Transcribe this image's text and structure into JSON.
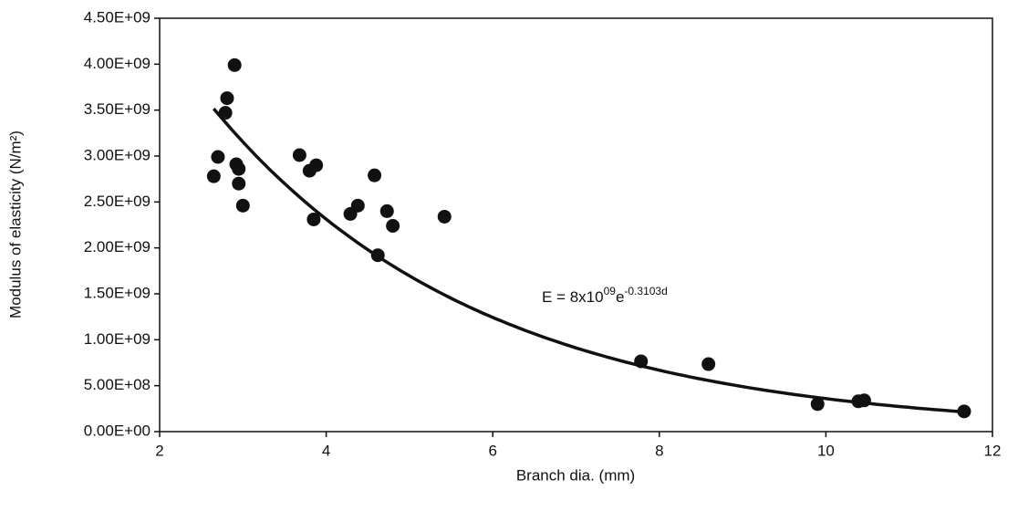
{
  "chart_data": {
    "type": "scatter",
    "x_label": "Branch dia. (mm)",
    "y_label": "Modulus of elasticity (N/m²)",
    "annotation": [
      {
        "text": "E = 8x10"
      },
      {
        "text": "09",
        "sup": true
      },
      {
        "text": "e"
      },
      {
        "text": "-0.3103d",
        "sup": true
      }
    ],
    "fit": {
      "type": "exponential",
      "coefficient": 8000000000,
      "rate": -0.3103,
      "xrange": [
        2.65,
        11.66
      ],
      "color": "#111111"
    },
    "color": "#111111",
    "x": [
      2.65,
      2.7,
      2.81,
      2.79,
      2.9,
      2.92,
      2.95,
      2.95,
      3.0,
      3.68,
      3.8,
      3.88,
      3.85,
      4.29,
      4.38,
      4.58,
      4.73,
      4.8,
      4.62,
      5.42,
      7.78,
      8.59,
      9.9,
      10.39,
      10.46,
      11.66
    ],
    "values": [
      2780000000,
      2990000000,
      3630000000,
      3470000000,
      3990000000,
      2910000000,
      2860000000,
      2700000000,
      2460000000,
      3010000000,
      2840000000,
      2900000000,
      2310000000,
      2370000000,
      2460000000,
      2790000000,
      2400000000,
      2240000000,
      1920000000,
      2340000000,
      765000000,
      735000000,
      300000000,
      330000000,
      340000000,
      220000000
    ],
    "xlim": [
      2,
      12
    ],
    "xticks": [
      2,
      4,
      6,
      8,
      10,
      12
    ],
    "ylim": [
      0,
      4500000000
    ],
    "yticks": [
      {
        "value": 0,
        "label": "0.00E+00"
      },
      {
        "value": 500000000,
        "label": "5.00E+08"
      },
      {
        "value": 1000000000,
        "label": "1.00E+09"
      },
      {
        "value": 1500000000,
        "label": "1.50E+09"
      },
      {
        "value": 2000000000,
        "label": "2.00E+09"
      },
      {
        "value": 2500000000,
        "label": "2.50E+09"
      },
      {
        "value": 3000000000,
        "label": "3.00E+09"
      },
      {
        "value": 3500000000,
        "label": "3.50E+09"
      },
      {
        "value": 4000000000,
        "label": "4.00E+09"
      },
      {
        "value": 4500000000,
        "label": "4.50E+09"
      }
    ],
    "grid": false
  }
}
